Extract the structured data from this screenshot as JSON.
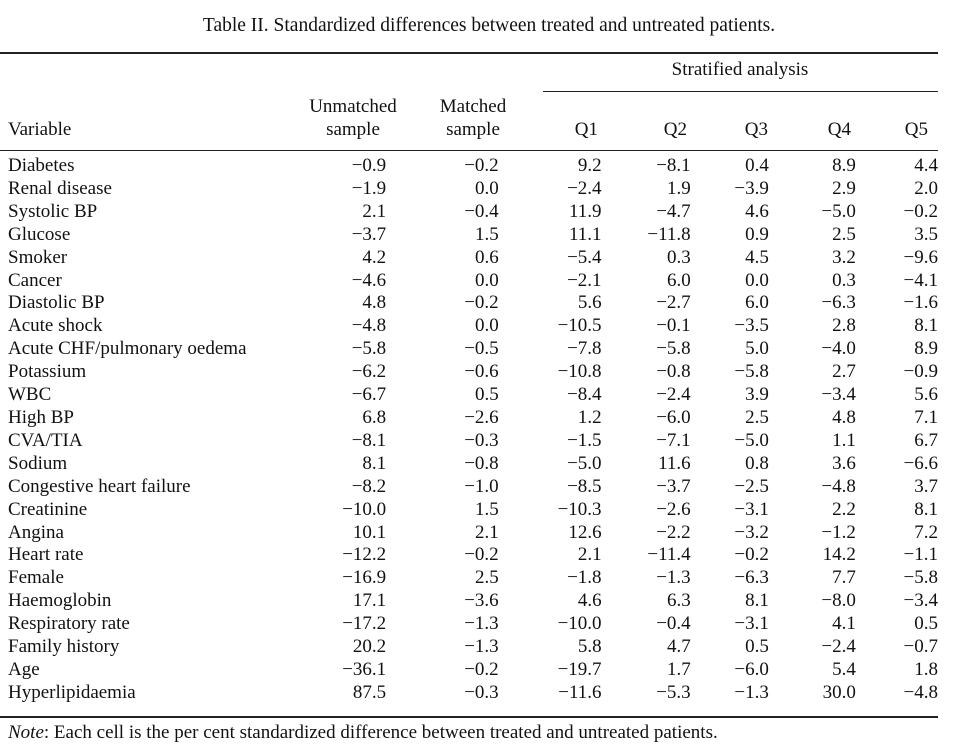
{
  "caption": "Table II. Standardized differences between treated and untreated patients.",
  "headers": {
    "stratified": "Stratified analysis",
    "variable": "Variable",
    "unmatched_line1": "Unmatched",
    "unmatched_line2": "sample",
    "matched_line1": "Matched",
    "matched_line2": "sample",
    "quintiles": [
      "Q1",
      "Q2",
      "Q3",
      "Q4",
      "Q5"
    ]
  },
  "rows": [
    [
      "Diabetes",
      "−0.9",
      "−0.2",
      "9.2",
      "−8.1",
      "0.4",
      "8.9",
      "4.4"
    ],
    [
      "Renal disease",
      "−1.9",
      "0.0",
      "−2.4",
      "1.9",
      "−3.9",
      "2.9",
      "2.0"
    ],
    [
      "Systolic BP",
      "2.1",
      "−0.4",
      "11.9",
      "−4.7",
      "4.6",
      "−5.0",
      "−0.2"
    ],
    [
      "Glucose",
      "−3.7",
      "1.5",
      "11.1",
      "−11.8",
      "0.9",
      "2.5",
      "3.5"
    ],
    [
      "Smoker",
      "4.2",
      "0.6",
      "−5.4",
      "0.3",
      "4.5",
      "3.2",
      "−9.6"
    ],
    [
      "Cancer",
      "−4.6",
      "0.0",
      "−2.1",
      "6.0",
      "0.0",
      "0.3",
      "−4.1"
    ],
    [
      "Diastolic BP",
      "4.8",
      "−0.2",
      "5.6",
      "−2.7",
      "6.0",
      "−6.3",
      "−1.6"
    ],
    [
      "Acute shock",
      "−4.8",
      "0.0",
      "−10.5",
      "−0.1",
      "−3.5",
      "2.8",
      "8.1"
    ],
    [
      "Acute CHF/pulmonary oedema",
      "−5.8",
      "−0.5",
      "−7.8",
      "−5.8",
      "5.0",
      "−4.0",
      "8.9"
    ],
    [
      "Potassium",
      "−6.2",
      "−0.6",
      "−10.8",
      "−0.8",
      "−5.8",
      "2.7",
      "−0.9"
    ],
    [
      "WBC",
      "−6.7",
      "0.5",
      "−8.4",
      "−2.4",
      "3.9",
      "−3.4",
      "5.6"
    ],
    [
      "High BP",
      "6.8",
      "−2.6",
      "1.2",
      "−6.0",
      "2.5",
      "4.8",
      "7.1"
    ],
    [
      "CVA/TIA",
      "−8.1",
      "−0.3",
      "−1.5",
      "−7.1",
      "−5.0",
      "1.1",
      "6.7"
    ],
    [
      "Sodium",
      "8.1",
      "−0.8",
      "−5.0",
      "11.6",
      "0.8",
      "3.6",
      "−6.6"
    ],
    [
      "Congestive heart failure",
      "−8.2",
      "−1.0",
      "−8.5",
      "−3.7",
      "−2.5",
      "−4.8",
      "3.7"
    ],
    [
      "Creatinine",
      "−10.0",
      "1.5",
      "−10.3",
      "−2.6",
      "−3.1",
      "2.2",
      "8.1"
    ],
    [
      "Angina",
      "10.1",
      "2.1",
      "12.6",
      "−2.2",
      "−3.2",
      "−1.2",
      "7.2"
    ],
    [
      "Heart rate",
      "−12.2",
      "−0.2",
      "2.1",
      "−11.4",
      "−0.2",
      "14.2",
      "−1.1"
    ],
    [
      "Female",
      "−16.9",
      "2.5",
      "−1.8",
      "−1.3",
      "−6.3",
      "7.7",
      "−5.8"
    ],
    [
      "Haemoglobin",
      "17.1",
      "−3.6",
      "4.6",
      "6.3",
      "8.1",
      "−8.0",
      "−3.4"
    ],
    [
      "Respiratory rate",
      "−17.2",
      "−1.3",
      "−10.0",
      "−0.4",
      "−3.1",
      "4.1",
      "0.5"
    ],
    [
      "Family history",
      "20.2",
      "−1.3",
      "5.8",
      "4.7",
      "0.5",
      "−2.4",
      "−0.7"
    ],
    [
      "Age",
      "−36.1",
      "−0.2",
      "−19.7",
      "1.7",
      "−6.0",
      "5.4",
      "1.8"
    ],
    [
      "Hyperlipidaemia",
      "87.5",
      "−0.3",
      "−11.6",
      "−5.3",
      "−1.3",
      "30.0",
      "−4.8"
    ]
  ],
  "note": {
    "label": "Note",
    "text": ": Each cell is the per cent standardized difference between treated and untreated patients."
  }
}
